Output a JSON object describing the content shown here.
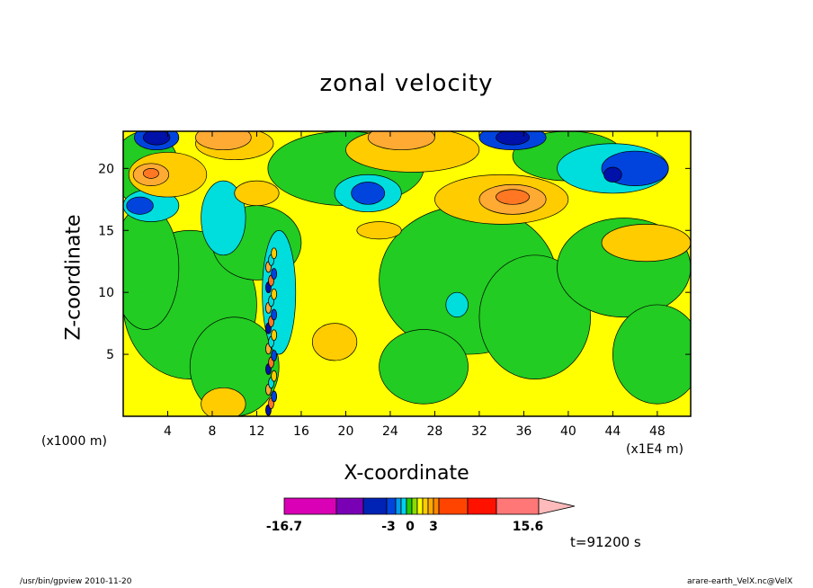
{
  "chart_data": {
    "type": "heatmap",
    "title": "zonal velocity",
    "xlabel": "X-coordinate",
    "ylabel": "Z-coordinate",
    "x_unit_left": "(x1000 m)",
    "x_unit_right": "(x1E4 m)",
    "xlim": [
      0,
      51
    ],
    "ylim": [
      0,
      23
    ],
    "xticks": [
      "4",
      "8",
      "12",
      "16",
      "20",
      "24",
      "28",
      "32",
      "36",
      "40",
      "44",
      "48"
    ],
    "yticks": [
      "5",
      "10",
      "15",
      "20"
    ],
    "colorbar": {
      "labels": [
        "-16.7",
        "-3",
        "0",
        "3",
        "15.6"
      ],
      "colors": [
        "#d900b5",
        "#7a00b5",
        "#0022b5",
        "#0044dd",
        "#0099ee",
        "#00d0ee",
        "#22cc00",
        "#88dd00",
        "#ffff00",
        "#ffcc00",
        "#ffaa00",
        "#ff8800",
        "#ff4400",
        "#ff1100",
        "#ff7777",
        "#ffbbbb"
      ]
    },
    "palette": {
      "dark_blue": "#0011aa",
      "blue": "#0044dd",
      "cyan": "#00dddd",
      "green": "#22cc22",
      "yellow": "#ffff00",
      "light_orange": "#ffcc00",
      "orange": "#ffaa33",
      "dark_orange": "#ff7722"
    },
    "time_label": "t=91200 s"
  },
  "footer": {
    "left": "/usr/bin/gpview   2010-11-20",
    "right": "arare-earth_VelX.nc@VelX"
  }
}
